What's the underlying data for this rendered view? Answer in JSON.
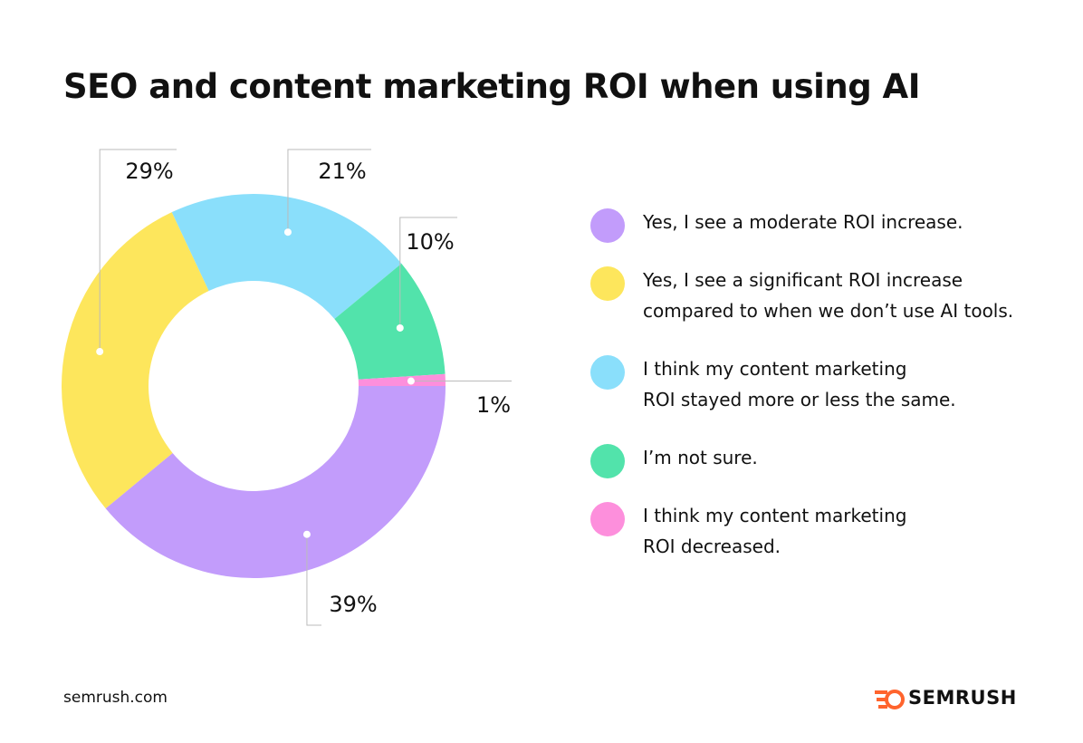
{
  "chart_data": {
    "type": "donut",
    "title": "SEO and content marketing ROI when using AI",
    "categories": [
      "Yes, I see a moderate ROI increase.",
      "Yes, I see a significant ROI increase\ncompared to when we don’t use AI tools.",
      "I think my content marketing\nROI stayed more or less the same.",
      "I’m not sure.",
      "I think my content marketing\nROI decreased."
    ],
    "values": [
      39,
      29,
      21,
      10,
      1
    ],
    "value_labels": [
      "39%",
      "29%",
      "21%",
      "10%",
      "1%"
    ],
    "colors": [
      "#c29cfb",
      "#fde65c",
      "#8adffb",
      "#52e3ab",
      "#fd8fdc"
    ],
    "source": "semrush.com",
    "brand": "SEMRUSH"
  }
}
